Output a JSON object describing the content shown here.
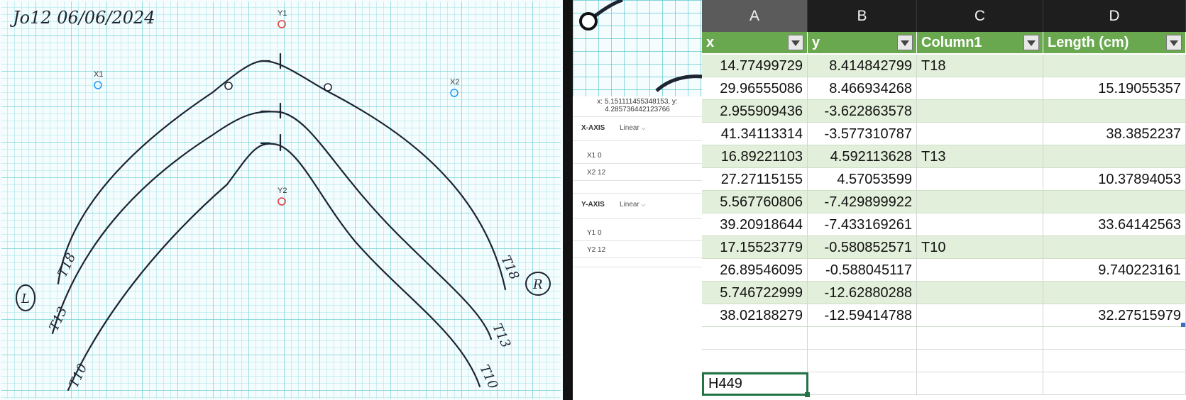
{
  "scan": {
    "header_note": "Jo12 06/06/2024",
    "calibration_points": [
      {
        "id": "x1",
        "label": "X1"
      },
      {
        "id": "x2",
        "label": "X2"
      },
      {
        "id": "y1",
        "label": "Y1"
      },
      {
        "id": "y2",
        "label": "Y2"
      }
    ],
    "curve_labels": {
      "t18_left": "T18",
      "t13_left": "T13",
      "t10_left": "T10",
      "t18_right": "T18",
      "t13_right": "T13",
      "t10_right": "T10",
      "side_left": "L",
      "side_right": "R"
    },
    "colors": {
      "grid": "#7fd6dc",
      "ink": "#1d2433",
      "calibration": "#e53935",
      "marker": "#2196f3"
    }
  },
  "axis_panel": {
    "cursor_readout": "x: 5.151111455348153, y: 4.285736442123766",
    "x_axis": {
      "label": "X-AXIS",
      "scale": "Linear",
      "x1": "X1  0",
      "x2": "X2  12"
    },
    "y_axis": {
      "label": "Y-AXIS",
      "scale": "Linear",
      "y1": "Y1  0",
      "y2": "Y2  12"
    },
    "chevron": "chevron-down-icon"
  },
  "spreadsheet": {
    "columns": [
      "A",
      "B",
      "C",
      "D"
    ],
    "headers": [
      "x",
      "y",
      "Column1",
      "Length (cm)"
    ],
    "rows": [
      {
        "x": "14.77499729",
        "y": "8.414842799",
        "c": "T18",
        "len": ""
      },
      {
        "x": "29.96555086",
        "y": "8.466934268",
        "c": "",
        "len": "15.19055357"
      },
      {
        "x": "2.955909436",
        "y": "-3.622863578",
        "c": "",
        "len": ""
      },
      {
        "x": "41.34113314",
        "y": "-3.577310787",
        "c": "",
        "len": "38.3852237"
      },
      {
        "x": "16.89221103",
        "y": "4.592113628",
        "c": "T13",
        "len": ""
      },
      {
        "x": "27.27115155",
        "y": "4.57053599",
        "c": "",
        "len": "10.37894053"
      },
      {
        "x": "5.567760806",
        "y": "-7.429899922",
        "c": "",
        "len": ""
      },
      {
        "x": "39.20918644",
        "y": "-7.433169261",
        "c": "",
        "len": "33.64142563"
      },
      {
        "x": "17.15523779",
        "y": "-0.580852571",
        "c": "T10",
        "len": ""
      },
      {
        "x": "26.89546095",
        "y": "-0.588045117",
        "c": "",
        "len": "9.740223161"
      },
      {
        "x": "5.746722999",
        "y": "-12.62880288",
        "c": "",
        "len": ""
      },
      {
        "x": "38.02188279",
        "y": "-12.59414788",
        "c": "",
        "len": "32.27515979"
      }
    ],
    "name_box": "H449",
    "header_color": "#6aa84f",
    "band_color": "#e2efda"
  }
}
